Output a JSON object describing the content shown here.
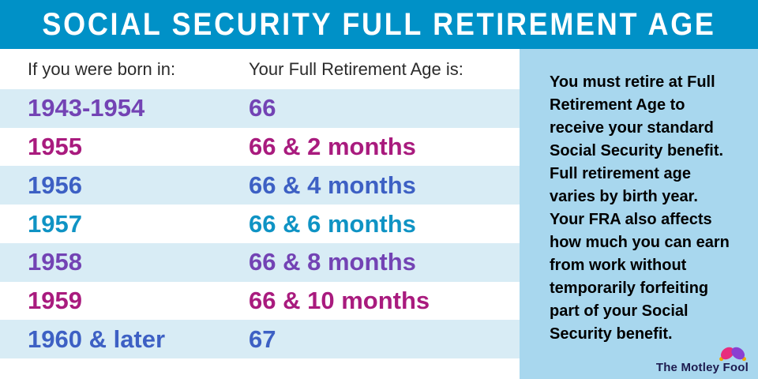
{
  "header": {
    "title": "SOCIAL SECURITY FULL RETIREMENT AGE"
  },
  "table": {
    "columns": [
      "If you were born in:",
      "Your Full Retirement Age is:"
    ],
    "rows": [
      {
        "born": "1943-1954",
        "age": "66",
        "color": "#7343b4"
      },
      {
        "born": "1955",
        "age": "66 & 2 months",
        "color": "#a91b7e"
      },
      {
        "born": "1956",
        "age": "66 & 4 months",
        "color": "#3d60c4"
      },
      {
        "born": "1957",
        "age": "66 & 6 months",
        "color": "#0f93c4"
      },
      {
        "born": "1958",
        "age": "66 & 8 months",
        "color": "#7343b4"
      },
      {
        "born": "1959",
        "age": "66 & 10 months",
        "color": "#a91b7e"
      },
      {
        "born": "1960 & later",
        "age": "67",
        "color": "#3d60c4"
      }
    ]
  },
  "sidebar": {
    "lines": [
      "You must retire at Full",
      "Retirement Age to",
      "receive your standard",
      "Social Security benefit.",
      "Full retirement age",
      "varies by birth year.",
      "Your FRA also affects",
      "how much you can earn",
      "from work without",
      "temporarily forfeiting",
      "part of your Social",
      "Security benefit."
    ]
  },
  "branding": {
    "name": "The Motley Fool",
    "icon": "jester-hat-icon"
  },
  "colors": {
    "header_bg": "#0091c7",
    "stripe": "#d8ecf5",
    "sidebar_bg": "#a8d7ee",
    "text_dark": "#2b2b2b",
    "logo_navy": "#1d1b4f",
    "hat_pink": "#e82d7d",
    "hat_purple": "#8a3fd1",
    "bell_gold": "#f0a800"
  },
  "chart_data": {
    "type": "table",
    "title": "SOCIAL SECURITY FULL RETIREMENT AGE",
    "columns": [
      "If you were born in:",
      "Your Full Retirement Age is:"
    ],
    "rows": [
      [
        "1943-1954",
        "66"
      ],
      [
        "1955",
        "66 & 2 months"
      ],
      [
        "1956",
        "66 & 4 months"
      ],
      [
        "1957",
        "66 & 6 months"
      ],
      [
        "1958",
        "66 & 8 months"
      ],
      [
        "1959",
        "66 & 10 months"
      ],
      [
        "1960 & later",
        "67"
      ]
    ],
    "note": "You must retire at Full Retirement Age to receive your standard Social Security benefit. Full retirement age varies by birth year. Your FRA also affects how much you can earn from work without temporarily forfeiting part of your Social Security benefit."
  }
}
